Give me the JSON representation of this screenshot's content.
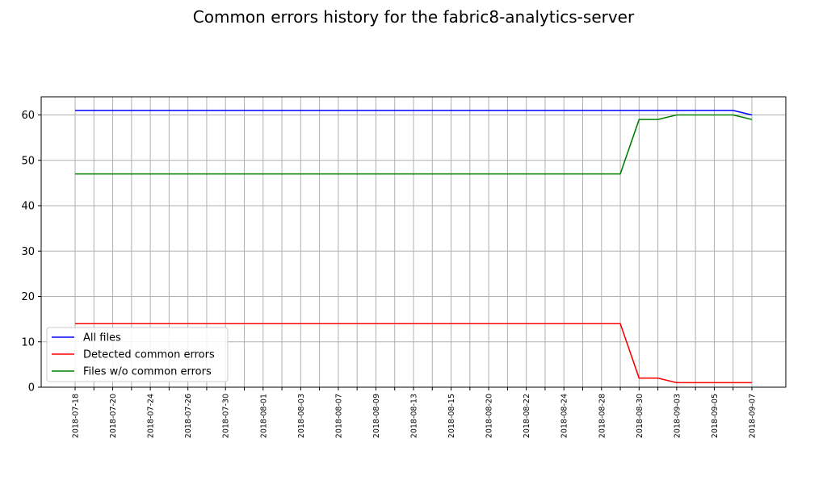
{
  "chart_data": {
    "type": "line",
    "title": "Common errors history for the fabric8-analytics-server",
    "xlabel": "",
    "ylabel": "",
    "ylim": [
      0,
      64
    ],
    "yticks": [
      0,
      10,
      20,
      30,
      40,
      50,
      60
    ],
    "grid": true,
    "legend_position": "lower-left",
    "x": [
      "2018-07-18",
      "2018-07-19",
      "2018-07-20",
      "2018-07-23",
      "2018-07-24",
      "2018-07-25",
      "2018-07-26",
      "2018-07-27",
      "2018-07-30",
      "2018-07-31",
      "2018-08-01",
      "2018-08-02",
      "2018-08-03",
      "2018-08-06",
      "2018-08-07",
      "2018-08-08",
      "2018-08-09",
      "2018-08-10",
      "2018-08-13",
      "2018-08-14",
      "2018-08-15",
      "2018-08-16",
      "2018-08-20",
      "2018-08-21",
      "2018-08-22",
      "2018-08-23",
      "2018-08-24",
      "2018-08-27",
      "2018-08-28",
      "2018-08-29",
      "2018-08-30",
      "2018-08-31",
      "2018-09-03",
      "2018-09-04",
      "2018-09-05",
      "2018-09-06",
      "2018-09-07"
    ],
    "x_tick_labels": [
      "2018-07-18",
      "2018-07-20",
      "2018-07-24",
      "2018-07-26",
      "2018-07-30",
      "2018-08-01",
      "2018-08-03",
      "2018-08-07",
      "2018-08-09",
      "2018-08-13",
      "2018-08-15",
      "2018-08-20",
      "2018-08-22",
      "2018-08-24",
      "2018-08-28",
      "2018-08-30",
      "2018-09-03",
      "2018-09-05",
      "2018-09-07"
    ],
    "series": [
      {
        "name": "All files",
        "color": "#0000ff",
        "values": [
          61,
          61,
          61,
          61,
          61,
          61,
          61,
          61,
          61,
          61,
          61,
          61,
          61,
          61,
          61,
          61,
          61,
          61,
          61,
          61,
          61,
          61,
          61,
          61,
          61,
          61,
          61,
          61,
          61,
          61,
          61,
          61,
          61,
          61,
          61,
          61,
          60
        ]
      },
      {
        "name": "Detected common errors",
        "color": "#ff0000",
        "values": [
          14,
          14,
          14,
          14,
          14,
          14,
          14,
          14,
          14,
          14,
          14,
          14,
          14,
          14,
          14,
          14,
          14,
          14,
          14,
          14,
          14,
          14,
          14,
          14,
          14,
          14,
          14,
          14,
          14,
          14,
          2,
          2,
          1,
          1,
          1,
          1,
          1
        ]
      },
      {
        "name": "Files w/o common errors",
        "color": "#008000",
        "values": [
          47,
          47,
          47,
          47,
          47,
          47,
          47,
          47,
          47,
          47,
          47,
          47,
          47,
          47,
          47,
          47,
          47,
          47,
          47,
          47,
          47,
          47,
          47,
          47,
          47,
          47,
          47,
          47,
          47,
          47,
          59,
          59,
          60,
          60,
          60,
          60,
          59
        ]
      }
    ]
  }
}
